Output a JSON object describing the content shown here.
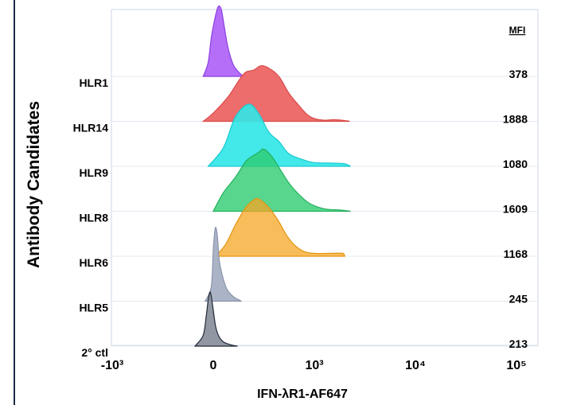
{
  "chart_data": {
    "type": "ridgeline",
    "title": "",
    "xlabel": "IFN-λR1-AF647",
    "ylabel": "Antibody Candidates",
    "x_scale": "biexponential",
    "x_ticks": [
      "-10³",
      "0",
      "10³",
      "10⁴",
      "10⁵"
    ],
    "legend_header": "MFI",
    "series": [
      {
        "name": "HLR1",
        "mfi": "378",
        "color": "#a855f7",
        "edge": "#8b3fe0",
        "alpha": 0.85,
        "profile": [
          [
            -0.1,
            0
          ],
          [
            -0.05,
            0.2
          ],
          [
            -0.02,
            0.55
          ],
          [
            0.02,
            0.85
          ],
          [
            0.05,
            1.0
          ],
          [
            0.08,
            0.95
          ],
          [
            0.11,
            0.7
          ],
          [
            0.14,
            0.45
          ],
          [
            0.17,
            0.28
          ],
          [
            0.2,
            0.16
          ],
          [
            0.24,
            0.08
          ],
          [
            0.28,
            0.02
          ],
          [
            0.3,
            0
          ]
        ]
      },
      {
        "name": "HLR14",
        "mfi": "1888",
        "color": "#ec6464",
        "edge": "#d94c4c",
        "alpha": 0.95,
        "profile": [
          [
            -0.1,
            0
          ],
          [
            0.0,
            0.15
          ],
          [
            0.15,
            0.45
          ],
          [
            0.3,
            0.85
          ],
          [
            0.4,
            0.92
          ],
          [
            0.48,
            1.0
          ],
          [
            0.58,
            0.92
          ],
          [
            0.66,
            0.78
          ],
          [
            0.75,
            0.5
          ],
          [
            0.85,
            0.28
          ],
          [
            0.93,
            0.12
          ],
          [
            1.0,
            0.05
          ],
          [
            1.1,
            0.02
          ],
          [
            1.2,
            0.03
          ],
          [
            1.32,
            0.01
          ],
          [
            1.35,
            0
          ]
        ]
      },
      {
        "name": "HLR9",
        "mfi": "1080",
        "color": "#33e6e6",
        "edge": "#19c9d1",
        "alpha": 0.92,
        "profile": [
          [
            -0.05,
            0
          ],
          [
            0.1,
            0.3
          ],
          [
            0.22,
            0.8
          ],
          [
            0.35,
            1.0
          ],
          [
            0.45,
            0.85
          ],
          [
            0.55,
            0.55
          ],
          [
            0.65,
            0.4
          ],
          [
            0.75,
            0.2
          ],
          [
            0.9,
            0.1
          ],
          [
            1.0,
            0.06
          ],
          [
            1.2,
            0.05
          ],
          [
            1.3,
            0.04
          ],
          [
            1.36,
            0
          ]
        ]
      },
      {
        "name": "HLR8",
        "mfi": "1609",
        "color": "#2ecc71",
        "edge": "#22b05c",
        "alpha": 0.8,
        "profile": [
          [
            0.0,
            0
          ],
          [
            0.1,
            0.3
          ],
          [
            0.22,
            0.55
          ],
          [
            0.32,
            0.8
          ],
          [
            0.38,
            0.88
          ],
          [
            0.45,
            0.95
          ],
          [
            0.5,
            1.0
          ],
          [
            0.58,
            0.88
          ],
          [
            0.66,
            0.68
          ],
          [
            0.75,
            0.45
          ],
          [
            0.86,
            0.25
          ],
          [
            0.96,
            0.12
          ],
          [
            1.1,
            0.04
          ],
          [
            1.25,
            0.02
          ],
          [
            1.36,
            0
          ]
        ]
      },
      {
        "name": "HLR6",
        "mfi": "1168",
        "color": "#f5a623",
        "edge": "#e39410",
        "alpha": 0.75,
        "profile": [
          [
            0.02,
            0
          ],
          [
            0.12,
            0.2
          ],
          [
            0.22,
            0.55
          ],
          [
            0.32,
            0.85
          ],
          [
            0.4,
            0.98
          ],
          [
            0.45,
            1.0
          ],
          [
            0.55,
            0.85
          ],
          [
            0.65,
            0.6
          ],
          [
            0.72,
            0.38
          ],
          [
            0.8,
            0.2
          ],
          [
            0.9,
            0.08
          ],
          [
            1.0,
            0.05
          ],
          [
            1.15,
            0.05
          ],
          [
            1.28,
            0.05
          ],
          [
            1.3,
            0
          ]
        ]
      },
      {
        "name": "HLR5",
        "mfi": "245",
        "color": "#a7b0c4",
        "edge": "#8a93aa",
        "alpha": 0.95,
        "profile": [
          [
            -0.08,
            0
          ],
          [
            -0.02,
            0.2
          ],
          [
            0.0,
            0.7
          ],
          [
            0.02,
            1.0
          ],
          [
            0.04,
            0.9
          ],
          [
            0.06,
            0.55
          ],
          [
            0.1,
            0.3
          ],
          [
            0.14,
            0.15
          ],
          [
            0.2,
            0.06
          ],
          [
            0.25,
            0.02
          ],
          [
            0.28,
            0
          ]
        ]
      },
      {
        "name": "2° ctl",
        "mfi": "213",
        "color": "#9298a3",
        "edge": "#1f2937",
        "alpha": 1.0,
        "profile": [
          [
            -0.18,
            0
          ],
          [
            -0.1,
            0.2
          ],
          [
            -0.07,
            0.55
          ],
          [
            -0.05,
            0.85
          ],
          [
            -0.03,
            1.0
          ],
          [
            -0.01,
            0.8
          ],
          [
            0.02,
            0.4
          ],
          [
            0.05,
            0.2
          ],
          [
            0.1,
            0.08
          ],
          [
            0.18,
            0.02
          ],
          [
            0.24,
            0
          ]
        ]
      }
    ]
  }
}
